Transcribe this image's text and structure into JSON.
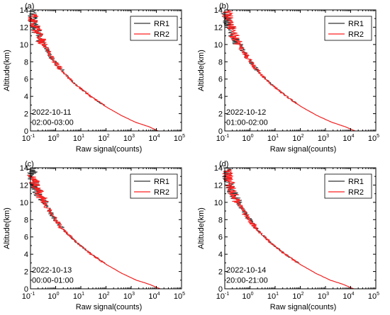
{
  "chart_data": [
    {
      "type": "line",
      "panel_label": "(a)",
      "date": "2022-10-11",
      "time": "02:00-03:00",
      "xlabel": "Raw signal(counts)",
      "ylabel": "Altitude(km)",
      "xscale": "log",
      "xlim": [
        0.1,
        100000
      ],
      "ylim": [
        0,
        14
      ],
      "x_ticks": [
        "10",
        "10",
        "10",
        "10",
        "10",
        "10",
        "10"
      ],
      "x_tick_exponents": [
        "-1",
        "0",
        "1",
        "2",
        "3",
        "4",
        "5"
      ],
      "y_ticks": [
        "0",
        "2",
        "4",
        "6",
        "8",
        "10",
        "12",
        "14"
      ],
      "legend_position": "top-right",
      "series": [
        {
          "name": "RR1",
          "color": "#333333",
          "x": [
            12000,
            5000,
            1500,
            400,
            100,
            25,
            6,
            2,
            0.8,
            0.4,
            0.2,
            0.13,
            0.11
          ],
          "y": [
            0,
            0.5,
            1,
            1.8,
            2.8,
            4,
            5.4,
            6.8,
            8.2,
            9.6,
            11,
            12.5,
            14
          ]
        },
        {
          "name": "RR2",
          "color": "#ff2020",
          "x": [
            12000,
            5000,
            1500,
            400,
            100,
            25,
            6,
            2,
            0.8,
            0.4,
            0.22,
            0.15,
            0.12
          ],
          "y": [
            0,
            0.5,
            1,
            1.8,
            2.8,
            4,
            5.4,
            6.8,
            8.2,
            9.6,
            11,
            12.3,
            13.5
          ]
        }
      ]
    },
    {
      "type": "line",
      "panel_label": "(b)",
      "date": "2022-10-12",
      "time": "01:00-02:00",
      "xlabel": "Raw signal(counts)",
      "ylabel": "Altitude(km)",
      "xscale": "log",
      "xlim": [
        0.1,
        100000
      ],
      "ylim": [
        0,
        14
      ],
      "x_ticks": [
        "10",
        "10",
        "10",
        "10",
        "10",
        "10",
        "10"
      ],
      "x_tick_exponents": [
        "-1",
        "0",
        "1",
        "2",
        "3",
        "4",
        "5"
      ],
      "y_ticks": [
        "0",
        "2",
        "4",
        "6",
        "8",
        "10",
        "12",
        "14"
      ],
      "legend_position": "top-right",
      "series": [
        {
          "name": "RR1",
          "color": "#333333",
          "x": [
            15000,
            6000,
            1800,
            450,
            110,
            28,
            7,
            2.2,
            0.9,
            0.45,
            0.22,
            0.14,
            0.11
          ],
          "y": [
            0,
            0.5,
            1,
            1.8,
            2.8,
            4,
            5.4,
            6.8,
            8.2,
            9.6,
            11,
            12.5,
            14
          ]
        },
        {
          "name": "RR2",
          "color": "#ff2020",
          "x": [
            15000,
            6000,
            1800,
            450,
            110,
            28,
            7,
            2.2,
            0.9,
            0.45,
            0.24,
            0.16,
            0.12
          ],
          "y": [
            0,
            0.5,
            1,
            1.8,
            2.8,
            4,
            5.4,
            6.8,
            8.2,
            9.6,
            11,
            12.5,
            14
          ]
        }
      ]
    },
    {
      "type": "line",
      "panel_label": "(c)",
      "date": "2022-10-13",
      "time": "00:00-01:00",
      "xlabel": "Raw signal(counts)",
      "ylabel": "Altitude(km)",
      "xscale": "log",
      "xlim": [
        0.1,
        100000
      ],
      "ylim": [
        0,
        14
      ],
      "x_ticks": [
        "10",
        "10",
        "10",
        "10",
        "10",
        "10",
        "10"
      ],
      "x_tick_exponents": [
        "-1",
        "0",
        "1",
        "2",
        "3",
        "4",
        "5"
      ],
      "y_ticks": [
        "0",
        "2",
        "4",
        "6",
        "8",
        "10",
        "12",
        "14"
      ],
      "legend_position": "top-right",
      "series": [
        {
          "name": "RR1",
          "color": "#333333",
          "x": [
            14000,
            5500,
            1600,
            420,
            105,
            26,
            6.5,
            2.1,
            0.85,
            0.42,
            0.21,
            0.13,
            0.11
          ],
          "y": [
            0,
            0.5,
            1,
            1.8,
            2.8,
            4,
            5.4,
            6.8,
            8.2,
            9.6,
            11,
            12.5,
            14
          ]
        },
        {
          "name": "RR2",
          "color": "#ff2020",
          "x": [
            14000,
            5500,
            1600,
            420,
            105,
            26,
            6.5,
            2.1,
            0.85,
            0.42,
            0.23,
            0.15,
            0.12
          ],
          "y": [
            0,
            0.5,
            1,
            1.8,
            2.8,
            4,
            5.4,
            6.8,
            8.2,
            9.6,
            11,
            12.2,
            13.2
          ]
        }
      ]
    },
    {
      "type": "line",
      "panel_label": "(d)",
      "date": "2022-10-14",
      "time": "20:00-21:00",
      "xlabel": "Raw signal(counts)",
      "ylabel": "Altitude(km)",
      "xscale": "log",
      "xlim": [
        0.1,
        100000
      ],
      "ylim": [
        0,
        14
      ],
      "x_ticks": [
        "10",
        "10",
        "10",
        "10",
        "10",
        "10",
        "10"
      ],
      "x_tick_exponents": [
        "-1",
        "0",
        "1",
        "2",
        "3",
        "4",
        "5"
      ],
      "y_ticks": [
        "0",
        "2",
        "4",
        "6",
        "8",
        "10",
        "12",
        "14"
      ],
      "legend_position": "top-right",
      "series": [
        {
          "name": "RR1",
          "color": "#333333",
          "x": [
            13000,
            5200,
            1550,
            410,
            102,
            25,
            6.2,
            2.0,
            0.82,
            0.41,
            0.21,
            0.14,
            0.11
          ],
          "y": [
            0,
            0.5,
            1,
            1.8,
            2.8,
            4,
            5.4,
            6.8,
            8.2,
            9.6,
            11,
            12.5,
            14
          ]
        },
        {
          "name": "RR2",
          "color": "#ff2020",
          "x": [
            13000,
            5200,
            1550,
            410,
            102,
            25,
            6.2,
            2.0,
            0.82,
            0.41,
            0.23,
            0.15,
            0.12
          ],
          "y": [
            0,
            0.5,
            1,
            1.8,
            2.8,
            4,
            5.4,
            6.8,
            8.2,
            9.6,
            11,
            12.4,
            13.8
          ]
        }
      ]
    }
  ]
}
